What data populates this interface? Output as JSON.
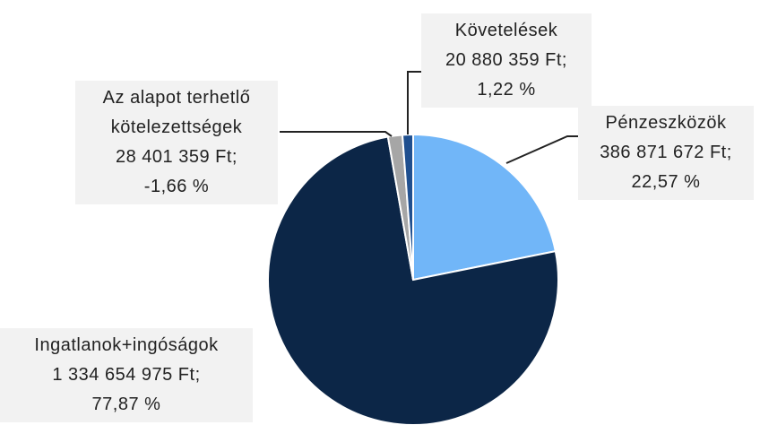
{
  "chart_data": {
    "type": "pie",
    "categories": [
      "Pénzeszközök",
      "Ingatlanok+ingóságok",
      "Az alapot terhetlő kötelezettségek",
      "Követelések"
    ],
    "values": [
      386871672,
      1334654975,
      28401359,
      20880359
    ],
    "value_labels": [
      "386 871 672  Ft;",
      "1 334 654 975 Ft;",
      "28 401 359 Ft;",
      "20 880 359 Ft;"
    ],
    "percent_labels": [
      "22,57 %",
      "77,87  %",
      "-1,66 %",
      "1,22 %"
    ],
    "colors": [
      "#71b6f8",
      "#0c2647",
      "#a6a6a6",
      "#1f4f8f"
    ]
  }
}
